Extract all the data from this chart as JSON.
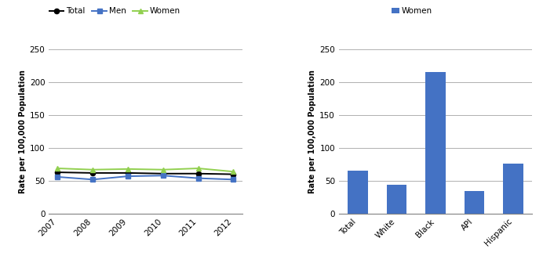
{
  "line_years": [
    2007,
    2008,
    2009,
    2010,
    2011,
    2012
  ],
  "total": [
    63,
    62,
    62,
    61,
    61,
    60
  ],
  "men": [
    56,
    52,
    57,
    58,
    54,
    52
  ],
  "women": [
    69,
    67,
    68,
    67,
    69,
    64
  ],
  "line_colors": {
    "Total": "#000000",
    "Men": "#4472c4",
    "Women": "#92d050"
  },
  "line_markers": {
    "Total": "o",
    "Men": "s",
    "Women": "^"
  },
  "bar_categories": [
    "Total",
    "White",
    "Black",
    "API",
    "Hispanic"
  ],
  "bar_values": [
    65,
    44,
    215,
    35,
    76
  ],
  "bar_color": "#4472c4",
  "bar_legend_label": "Women",
  "ylabel": "Rate per 100,000 Population",
  "ylim": [
    0,
    250
  ],
  "yticks": [
    0,
    50,
    100,
    150,
    200,
    250
  ],
  "background_color": "#ffffff",
  "grid_color": "#b0b0b0"
}
